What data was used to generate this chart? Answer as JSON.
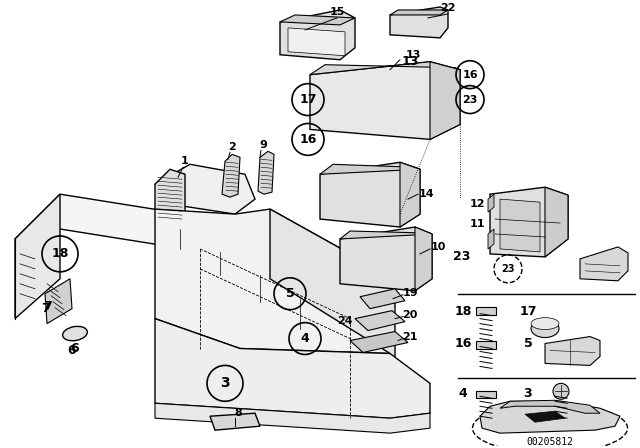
{
  "bg": "#ffffff",
  "lc": "#000000",
  "fig_w": 6.4,
  "fig_h": 4.48,
  "dpi": 100,
  "part_code": "00205812"
}
